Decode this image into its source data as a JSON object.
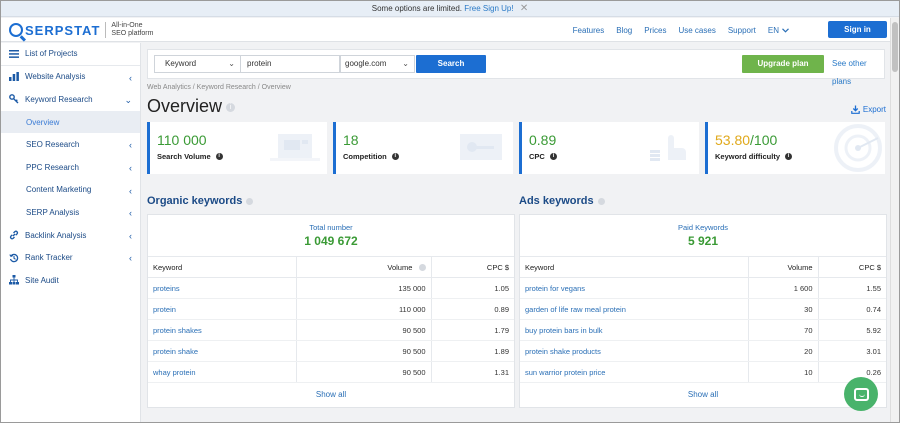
{
  "notice": {
    "text": "Some options are limited.",
    "link": "Free Sign Up!",
    "close": "✕"
  },
  "header": {
    "brand": "SERPSTAT",
    "tagline_1": "All-in-One",
    "tagline_2": "SEO platform",
    "nav": [
      "Features",
      "Blog",
      "Prices",
      "Use cases",
      "Support"
    ],
    "lang": "EN",
    "signin": "Sign in"
  },
  "sidebar": {
    "items": [
      {
        "label": "List of Projects",
        "icon": "list-icon"
      },
      {
        "label": "Website Analysis",
        "icon": "chart-icon"
      },
      {
        "label": "Keyword Research",
        "icon": "key-icon"
      },
      {
        "label": "Overview"
      },
      {
        "label": "SEO Research"
      },
      {
        "label": "PPC Research"
      },
      {
        "label": "Content Marketing"
      },
      {
        "label": "SERP Analysis"
      },
      {
        "label": "Backlink Analysis",
        "icon": "link-icon"
      },
      {
        "label": "Rank Tracker",
        "icon": "history-icon"
      },
      {
        "label": "Site Audit",
        "icon": "sitemap-icon"
      }
    ]
  },
  "search": {
    "type": "Keyword",
    "query": "protein",
    "database": "google.com",
    "button": "Search",
    "upgrade": "Upgrade plan",
    "other_plans": "See other plans"
  },
  "breadcrumbs": "Web Analytics / Keyword Research / Overview",
  "page_title": "Overview",
  "export": "Export",
  "cards": [
    {
      "value": "110 000",
      "label": "Search Volume",
      "color": "#3a9a35"
    },
    {
      "value": "18",
      "label": "Competition",
      "color": "#3a9a35"
    },
    {
      "value": "0.89",
      "label": "CPC",
      "color": "#3a9a35"
    },
    {
      "value": "53.80",
      "suffix": "/100",
      "label": "Keyword difficulty",
      "color": "#e0a91c"
    }
  ],
  "organic": {
    "title": "Organic keywords",
    "total_label": "Total number",
    "total": "1 049 672",
    "cols": [
      "Keyword",
      "Volume",
      "CPC $"
    ],
    "rows": [
      [
        "proteins",
        "135 000",
        "1.05"
      ],
      [
        "protein",
        "110 000",
        "0.89"
      ],
      [
        "protein shakes",
        "90 500",
        "1.79"
      ],
      [
        "protein shake",
        "90 500",
        "1.89"
      ],
      [
        "whay protein",
        "90 500",
        "1.31"
      ]
    ],
    "show_all": "Show all"
  },
  "ads": {
    "title": "Ads keywords",
    "total_label": "Paid Keywords",
    "total": "5 921",
    "cols": [
      "Keyword",
      "Volume",
      "CPC $"
    ],
    "rows": [
      [
        "protein for vegans",
        "1 600",
        "1.55"
      ],
      [
        "garden of life raw meal protein",
        "30",
        "0.74"
      ],
      [
        "buy protein bars in bulk",
        "70",
        "5.92"
      ],
      [
        "protein shake products",
        "20",
        "3.01"
      ],
      [
        "sun warrior protein price",
        "10",
        "0.26"
      ]
    ],
    "show_all": "Show all"
  }
}
